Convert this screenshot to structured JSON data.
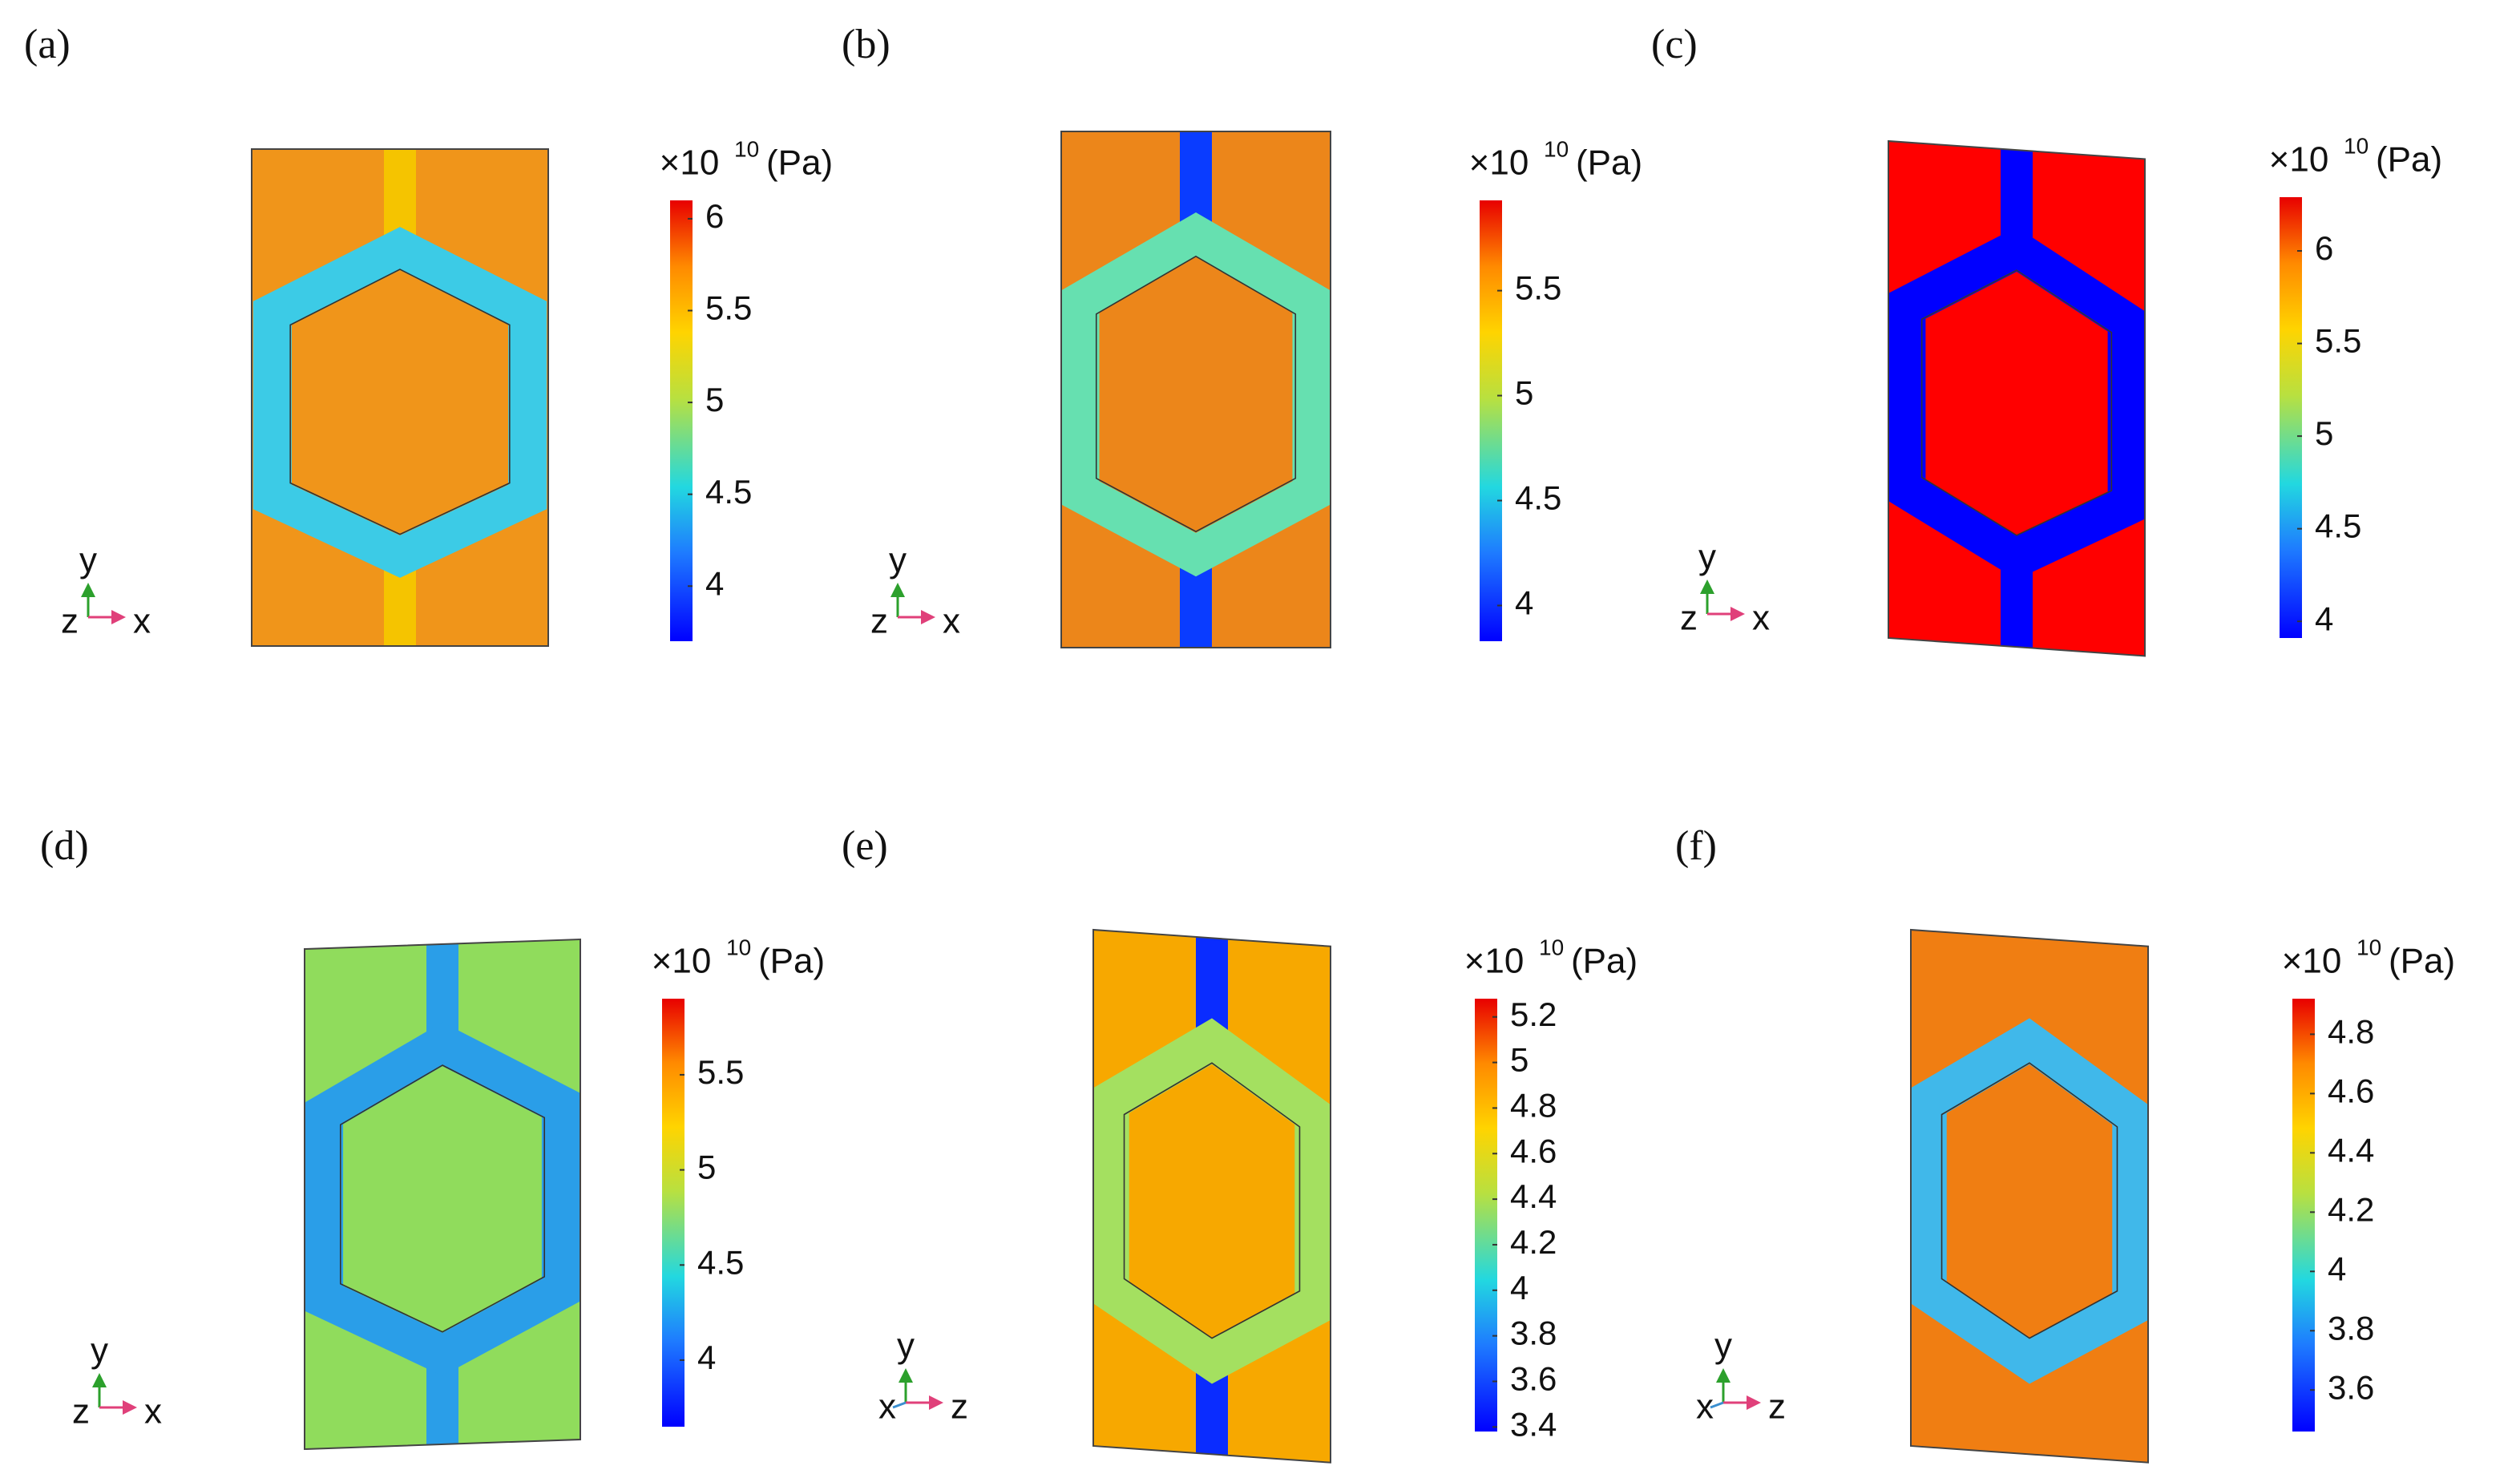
{
  "chart_data": [
    {
      "type": "heatmap",
      "label": "(a)",
      "colorbar_title": "×10",
      "colorbar_exponent": "10",
      "colorbar_unit": "(Pa)",
      "axis_labels": [
        "y",
        "z",
        "x"
      ],
      "ylim": [
        3.7,
        6.1
      ],
      "yticks": [
        4,
        4.5,
        5,
        5.5,
        6
      ]
    },
    {
      "type": "heatmap",
      "label": "(b)",
      "colorbar_title": "×10",
      "colorbar_exponent": "10",
      "colorbar_unit": "(Pa)",
      "axis_labels": [
        "y",
        "z",
        "x"
      ],
      "ylim": [
        3.83,
        5.93
      ],
      "yticks": [
        4,
        4.5,
        5,
        5.5
      ]
    },
    {
      "type": "heatmap",
      "label": "(c)",
      "colorbar_title": "×10",
      "colorbar_exponent": "10",
      "colorbar_unit": "(Pa)",
      "axis_labels": [
        "y",
        "z",
        "x"
      ],
      "ylim": [
        3.91,
        6.29
      ],
      "yticks": [
        4,
        4.5,
        5,
        5.5,
        6
      ]
    },
    {
      "type": "heatmap",
      "label": "(d)",
      "colorbar_title": "×10",
      "colorbar_exponent": "10",
      "colorbar_unit": "(Pa)",
      "axis_labels": [
        "y",
        "z",
        "x"
      ],
      "ylim": [
        3.65,
        5.9
      ],
      "yticks": [
        4,
        4.5,
        5,
        5.5
      ]
    },
    {
      "type": "heatmap",
      "label": "(e)",
      "colorbar_title": "×10",
      "colorbar_exponent": "10",
      "colorbar_unit": "(Pa)",
      "axis_labels": [
        "y",
        "x",
        "z"
      ],
      "ylim": [
        3.38,
        5.28
      ],
      "yticks": [
        3.4,
        3.6,
        3.8,
        4,
        4.2,
        4.4,
        4.6,
        4.8,
        5,
        5.2
      ]
    },
    {
      "type": "heatmap",
      "label": "(f)",
      "colorbar_title": "×10",
      "colorbar_exponent": "10",
      "colorbar_unit": "(Pa)",
      "axis_labels": [
        "y",
        "x",
        "z"
      ],
      "ylim": [
        3.46,
        4.92
      ],
      "yticks": [
        3.6,
        3.8,
        4,
        4.2,
        4.4,
        4.6,
        4.8
      ]
    }
  ]
}
